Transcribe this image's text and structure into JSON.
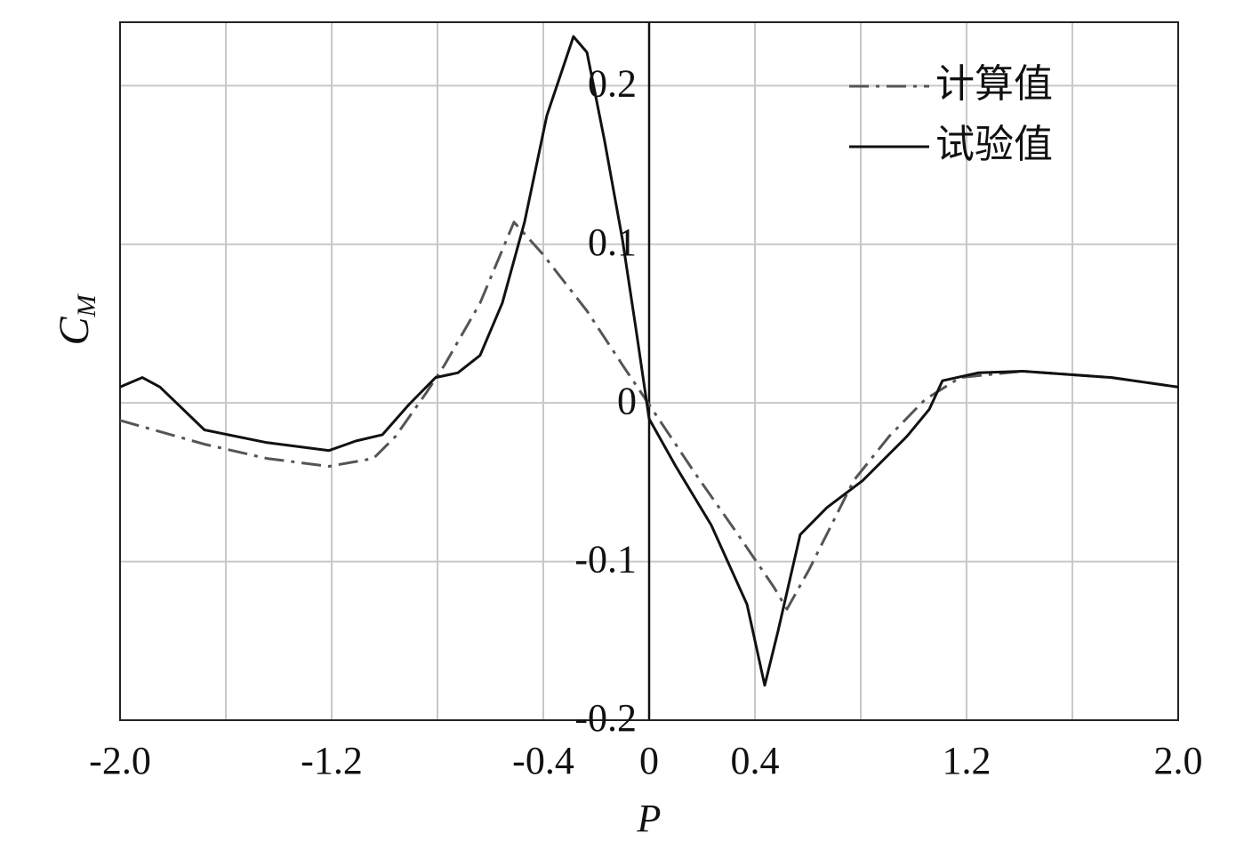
{
  "chart_data": {
    "type": "line",
    "xlabel": "P",
    "ylabel": {
      "text": "C",
      "subscript": "M"
    },
    "xlim": [
      -2.0,
      2.0
    ],
    "ylim": [
      -0.2,
      0.24
    ],
    "xticks": [
      {
        "value": -2.0,
        "label": "-2.0"
      },
      {
        "value": -1.2,
        "label": "-1.2"
      },
      -0.4,
      0,
      0.4,
      {
        "value": 1.2,
        "label": "1.2"
      },
      {
        "value": 2.0,
        "label": "2.0"
      }
    ],
    "xgrid": [
      -2.0,
      -1.6,
      -1.2,
      -0.8,
      -0.4,
      0,
      0.4,
      0.8,
      1.2,
      1.6,
      2.0
    ],
    "yticks": [
      -0.2,
      -0.1,
      0,
      0.1,
      0.2
    ],
    "grid": true,
    "legend": "upper right",
    "series": [
      {
        "name": "计算值",
        "color": "#555555",
        "dash": "dashdot",
        "x": [
          -2.0,
          -1.681,
          -1.445,
          -1.21,
          -1.042,
          -0.958,
          -0.84,
          -0.773,
          -0.639,
          -0.511,
          -0.403,
          -0.235,
          -0.101,
          0,
          0.168,
          0.336,
          0.471,
          0.521,
          0.605,
          0.773,
          0.908,
          1.042,
          1.176,
          1.412,
          1.748,
          2.0
        ],
        "values": [
          -0.011,
          -0.026,
          -0.035,
          -0.04,
          -0.035,
          -0.021,
          0.007,
          0.024,
          0.063,
          0.114,
          0.094,
          0.058,
          0.024,
          -0.001,
          -0.043,
          -0.083,
          -0.116,
          -0.13,
          -0.105,
          -0.049,
          -0.021,
          0.002,
          0.016,
          0.02,
          0.016,
          0.01
        ]
      },
      {
        "name": "试验值",
        "color": "#111111",
        "dash": "solid",
        "x": [
          -2.0,
          -1.916,
          -1.849,
          -1.681,
          -1.445,
          -1.21,
          -1.109,
          -1.008,
          -0.908,
          -0.807,
          -0.723,
          -0.639,
          -0.555,
          -0.471,
          -0.387,
          -0.286,
          -0.235,
          -0.168,
          -0.101,
          -0.05,
          0,
          0.101,
          0.235,
          0.37,
          0.437,
          0.487,
          0.571,
          0.672,
          0.807,
          0.975,
          1.059,
          1.109,
          1.244,
          1.412,
          1.748,
          2.0
        ],
        "values": [
          0.01,
          0.016,
          0.01,
          -0.017,
          -0.025,
          -0.03,
          -0.024,
          -0.02,
          -0.001,
          0.016,
          0.019,
          0.03,
          0.063,
          0.114,
          0.181,
          0.231,
          0.221,
          0.165,
          0.103,
          0.047,
          -0.01,
          -0.04,
          -0.077,
          -0.127,
          -0.178,
          -0.144,
          -0.083,
          -0.066,
          -0.049,
          -0.021,
          -0.004,
          0.014,
          0.019,
          0.02,
          0.016,
          0.01
        ]
      }
    ]
  }
}
